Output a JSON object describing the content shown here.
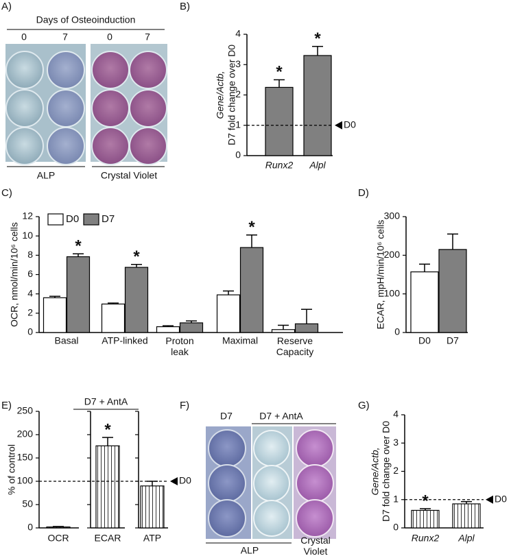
{
  "photo_panels": [
    {
      "panel_label": "A)",
      "title": "Days of Osteoinduction",
      "days": [
        "0",
        "7",
        "0",
        "7"
      ],
      "stains": [
        "ALP",
        "Crystal Violet"
      ]
    },
    {
      "panel_label": "F)",
      "conditions": [
        "D7",
        "D7 + AntA"
      ],
      "stains": [
        "ALP",
        "Crystal Violet"
      ]
    }
  ],
  "chart_data": [
    {
      "type": "bar",
      "panel_label": "B)",
      "y_label": [
        "Gene/Actb,",
        "D7 fold change over D0"
      ],
      "categories": [
        "Runx2",
        "Alpl"
      ],
      "values": [
        2.25,
        3.3
      ],
      "errors": [
        0.25,
        0.3
      ],
      "annotations": [
        "*",
        "*"
      ],
      "color": "#808080",
      "ylim": [
        0,
        4
      ],
      "yticks": [
        0,
        1,
        2,
        3,
        4
      ],
      "reference_line": {
        "value": 1,
        "label": "D0"
      }
    },
    {
      "type": "bar",
      "panel_label": "C)",
      "y_label": [
        "OCR, nmol/min/10⁶ cells"
      ],
      "categories": [
        "Basal",
        "ATP-linked",
        "Proton leak",
        "Maximal",
        "Reserve Capacity"
      ],
      "series": [
        {
          "name": "D0",
          "color": "#ffffff",
          "values": [
            3.6,
            2.95,
            0.6,
            3.9,
            0.3
          ],
          "errors": [
            0.15,
            0.1,
            0.1,
            0.4,
            0.45
          ]
        },
        {
          "name": "D7",
          "color": "#808080",
          "values": [
            7.85,
            6.75,
            1.0,
            8.8,
            0.9
          ],
          "errors": [
            0.3,
            0.3,
            0.2,
            1.3,
            1.5
          ],
          "annotations": [
            "*",
            "*",
            null,
            "*",
            null
          ]
        }
      ],
      "ylim": [
        0,
        12
      ],
      "yticks": [
        0,
        2,
        4,
        6,
        8,
        10,
        12
      ],
      "legend": "top-left"
    },
    {
      "type": "bar",
      "panel_label": "D)",
      "y_label": [
        "ECAR, mpH/min/10⁶ cells"
      ],
      "categories": [
        "D0",
        "D7"
      ],
      "values": [
        157,
        215
      ],
      "errors": [
        20,
        40
      ],
      "colors": [
        "#ffffff",
        "#808080"
      ],
      "ylim": [
        0,
        300
      ],
      "yticks": [
        0,
        100,
        200,
        300
      ]
    },
    {
      "type": "bar",
      "panel_label": "E)",
      "y_label": [
        "% of control"
      ],
      "group_label": "D7 + AntA",
      "categories": [
        "OCR",
        "ECAR",
        "ATP"
      ],
      "values": [
        2,
        176,
        90
      ],
      "errors": [
        1,
        18,
        10
      ],
      "annotations": [
        null,
        "*",
        null
      ],
      "hatch": true,
      "split_axes": true,
      "ylim": [
        0,
        250
      ],
      "yticks": [
        0,
        50,
        100,
        150,
        200,
        250
      ],
      "reference_line": {
        "value": 100,
        "label": "D0"
      }
    },
    {
      "type": "bar",
      "panel_label": "G)",
      "y_label": [
        "Gene/Actb,",
        "D7 fold change over D0"
      ],
      "categories": [
        "Runx2",
        "Alpl"
      ],
      "values": [
        0.62,
        0.85
      ],
      "errors": [
        0.06,
        0.08
      ],
      "annotations": [
        "*",
        null
      ],
      "hatch": true,
      "ylim": [
        0,
        4
      ],
      "yticks": [
        0,
        1,
        2,
        3,
        4
      ],
      "reference_line": {
        "value": 1,
        "label": "D0"
      }
    }
  ]
}
